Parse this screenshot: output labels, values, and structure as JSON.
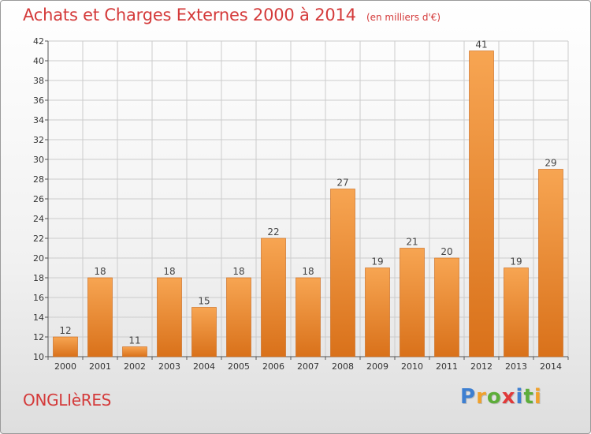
{
  "title": "Achats et Charges Externes 2000 à 2014",
  "unit": "(en milliers d'€)",
  "commune": "ONGLIèRES",
  "brand": {
    "text": "Proxiti",
    "letters": [
      {
        "ch": "P",
        "color": "#3d7fd1"
      },
      {
        "ch": "r",
        "color": "#f0a12b"
      },
      {
        "ch": "o",
        "color": "#5dad3a"
      },
      {
        "ch": "x",
        "color": "#e03a3a"
      },
      {
        "ch": "i",
        "color": "#3d7fd1"
      },
      {
        "ch": "t",
        "color": "#5dad3a"
      },
      {
        "ch": "i",
        "color": "#f0a12b"
      }
    ]
  },
  "colors": {
    "bar_top": "#f7a552",
    "bar_bottom": "#d9711a",
    "bar_edge": "#c86414",
    "title": "#d43a3a",
    "grid": "#cccccc",
    "axis_text": "#333333"
  },
  "chart_data": {
    "type": "bar",
    "title": "Achats et Charges Externes 2000 à 2014",
    "ylabel": "(en milliers d'€)",
    "xlabel": "",
    "categories": [
      "2000",
      "2001",
      "2002",
      "2003",
      "2004",
      "2005",
      "2006",
      "2007",
      "2008",
      "2009",
      "2010",
      "2011",
      "2012",
      "2013",
      "2014"
    ],
    "values": [
      12,
      18,
      11,
      18,
      15,
      18,
      22,
      18,
      27,
      19,
      21,
      20,
      41,
      19,
      29
    ],
    "ylim": [
      10,
      42
    ],
    "yticks": [
      10,
      12,
      14,
      16,
      18,
      20,
      22,
      24,
      26,
      28,
      30,
      32,
      34,
      36,
      38,
      40,
      42
    ],
    "ytick_labels": [
      "10",
      "12",
      "14",
      "16",
      "18",
      "20",
      "22",
      "24",
      "26",
      "28",
      "30",
      "32",
      "34",
      "36",
      "38",
      "40",
      "42"
    ],
    "grid": true,
    "legend": "none"
  }
}
